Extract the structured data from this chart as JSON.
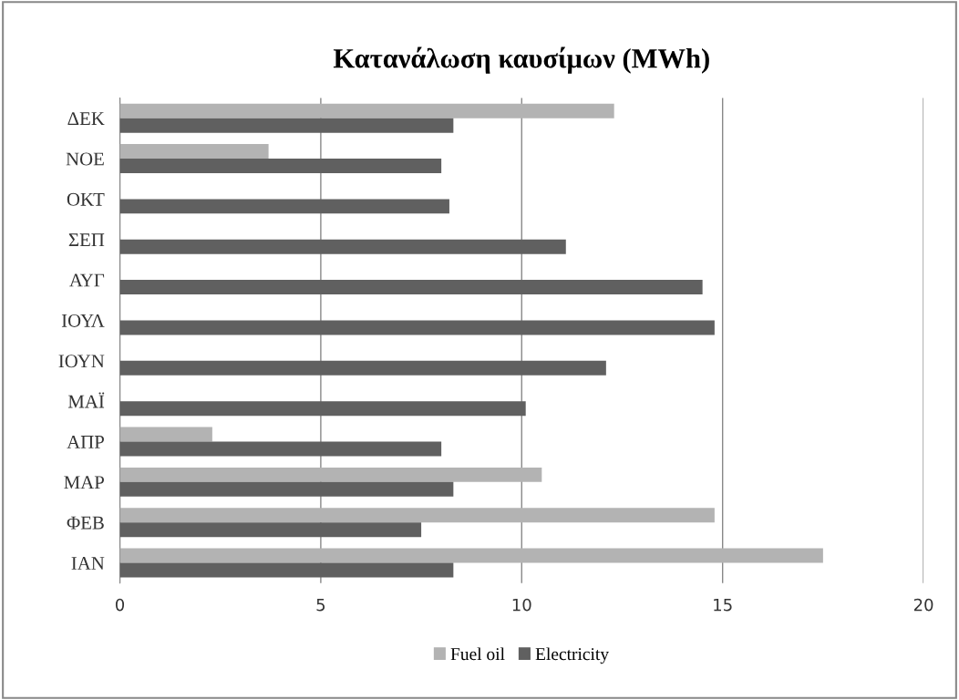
{
  "chart_data": {
    "type": "bar",
    "orientation": "horizontal",
    "title": "Κατανάλωση καυσίμων (MWh)",
    "categories": [
      "ΔΕΚ",
      "ΝΟΕ",
      "ΟΚΤ",
      "ΣΕΠ",
      "ΑΥΓ",
      "ΙΟΥΛ",
      "ΙΟΥΝ",
      "ΜΑΪ",
      "ΑΠΡ",
      "ΜΑΡ",
      "ΦΕΒ",
      "ΙΑΝ"
    ],
    "series": [
      {
        "name": "Fuel oil",
        "color": "#b3b3b3",
        "values": [
          12.3,
          3.7,
          null,
          null,
          null,
          null,
          null,
          null,
          2.3,
          10.5,
          14.8,
          17.5
        ]
      },
      {
        "name": "Electricity",
        "color": "#606060",
        "values": [
          8.3,
          8.0,
          8.2,
          11.1,
          14.5,
          14.8,
          12.1,
          10.1,
          8.0,
          8.3,
          7.5,
          8.3
        ]
      }
    ],
    "xlim": [
      0,
      20
    ],
    "xticks": [
      0,
      5,
      10,
      15,
      20
    ],
    "grid": "x",
    "legend": "bottom"
  }
}
